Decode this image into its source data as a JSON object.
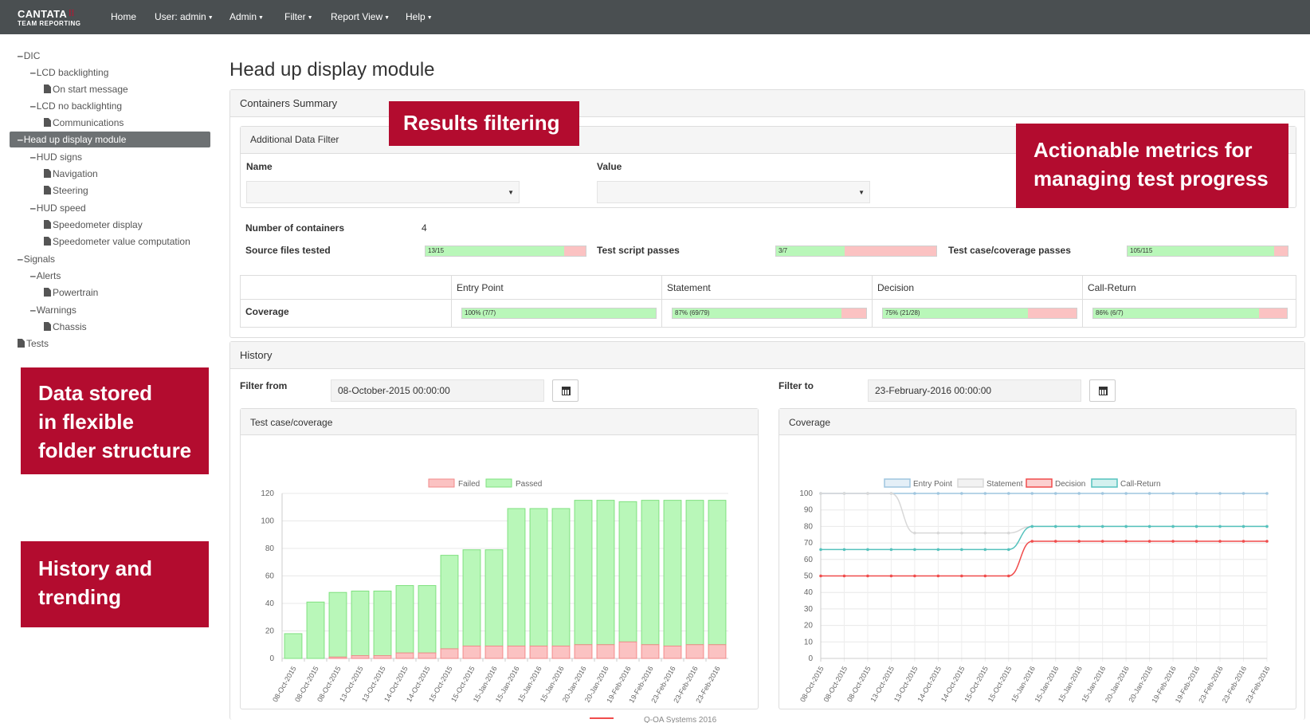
{
  "brand": {
    "name": "CANTATA",
    "sub": "TEAM REPORTING"
  },
  "nav": [
    {
      "label": "Home",
      "caret": false
    },
    {
      "label": "User: admin",
      "caret": true
    },
    {
      "label": "Admin",
      "caret": true
    },
    {
      "label": "Filter",
      "caret": true
    },
    {
      "label": "Report View",
      "caret": true
    },
    {
      "label": "Help",
      "caret": true
    }
  ],
  "tree": [
    {
      "label": "DIC",
      "type": "folder"
    },
    {
      "label": "LCD backlighting",
      "type": "folder"
    },
    {
      "label": "On start message",
      "type": "doc"
    },
    {
      "label": "LCD no backlighting",
      "type": "folder"
    },
    {
      "label": "Communications",
      "type": "doc"
    },
    {
      "label": "Head up display module",
      "type": "folder",
      "selected": true
    },
    {
      "label": "HUD signs",
      "type": "folder"
    },
    {
      "label": "Navigation",
      "type": "doc"
    },
    {
      "label": "Steering",
      "type": "doc"
    },
    {
      "label": "HUD speed",
      "type": "folder"
    },
    {
      "label": "Speedometer display",
      "type": "doc"
    },
    {
      "label": "Speedometer value computation",
      "type": "doc"
    },
    {
      "label": "Signals",
      "type": "folder"
    },
    {
      "label": "Alerts",
      "type": "folder"
    },
    {
      "label": "Powertrain",
      "type": "doc"
    },
    {
      "label": "Warnings",
      "type": "folder"
    },
    {
      "label": "Chassis",
      "type": "doc"
    },
    {
      "label": "Tests",
      "type": "doc"
    }
  ],
  "callouts": {
    "results": [
      "Results filtering"
    ],
    "metrics": [
      "Actionable metrics for",
      "managing  test progress"
    ],
    "folders": [
      "Data stored",
      "in flexible",
      "folder structure"
    ],
    "history": [
      "History and",
      "trending"
    ]
  },
  "page_title": "Head up display module",
  "summary": {
    "title": "Containers Summary",
    "filter": {
      "title": "Additional Data Filter",
      "name_label": "Name",
      "value_label": "Value",
      "name_value": "",
      "value_value": ""
    },
    "num_containers_label": "Number of containers",
    "num_containers": "4",
    "bars": [
      {
        "label": "Source files tested",
        "text": "13/15",
        "fraction": 0.867
      },
      {
        "label": "Test script passes",
        "text": "3/7",
        "fraction": 0.429
      },
      {
        "label": "Test case/coverage passes",
        "text": "105/115",
        "fraction": 0.913
      }
    ],
    "coverage": {
      "row_label": "Coverage",
      "columns": [
        {
          "header": "Entry Point",
          "text": "100% (7/7)",
          "fraction": 1.0
        },
        {
          "header": "Statement",
          "text": "87% (69/79)",
          "fraction": 0.873
        },
        {
          "header": "Decision",
          "text": "75% (21/28)",
          "fraction": 0.75
        },
        {
          "header": "Call-Return",
          "text": "86% (6/7)",
          "fraction": 0.857
        }
      ]
    }
  },
  "history": {
    "title": "History",
    "from_label": "Filter from",
    "from_value": "08-October-2015 00:00:00",
    "to_label": "Filter to",
    "to_value": "23-February-2016 00:00:00",
    "footer_text": "Q-OA Systems 2016"
  },
  "colors": {
    "failed": "#fbc2c2",
    "failed_stroke": "#f28a8a",
    "passed": "#b9f7b9",
    "passed_stroke": "#7fe07f",
    "entry_point": "#9fc6df",
    "statement": "#d8d8d8",
    "decision": "#f04c4c",
    "call_return": "#55c2bd",
    "accent": "#b30c2f"
  },
  "chart_data": [
    {
      "type": "bar",
      "title": "Test case/coverage",
      "categories": [
        "08-Oct-2015",
        "08-Oct-2015",
        "08-Oct-2015",
        "13-Oct-2015",
        "13-Oct-2015",
        "14-Oct-2015",
        "14-Oct-2015",
        "15-Oct-2015",
        "15-Oct-2015",
        "15-Jan-2016",
        "15-Jan-2016",
        "15-Jan-2016",
        "15-Jan-2016",
        "20-Jan-2016",
        "20-Jan-2016",
        "19-Feb-2016",
        "19-Feb-2016",
        "23-Feb-2016",
        "23-Feb-2016",
        "23-Feb-2016"
      ],
      "series": [
        {
          "name": "Failed",
          "values": [
            0,
            0,
            1,
            2,
            2,
            4,
            4,
            7,
            9,
            9,
            9,
            9,
            9,
            10,
            10,
            12,
            10,
            9,
            10,
            10
          ]
        },
        {
          "name": "Passed",
          "values": [
            18,
            41,
            47,
            47,
            47,
            49,
            49,
            68,
            70,
            70,
            100,
            100,
            100,
            105,
            105,
            102,
            105,
            106,
            105,
            105
          ]
        }
      ],
      "stacked": true,
      "ylim": [
        0,
        120
      ],
      "yticks": [
        0,
        20,
        40,
        60,
        80,
        100,
        120
      ],
      "legend": "top",
      "grid": true
    },
    {
      "type": "line",
      "title": "Coverage",
      "categories": [
        "08-Oct-2015",
        "08-Oct-2015",
        "08-Oct-2015",
        "13-Oct-2015",
        "13-Oct-2015",
        "14-Oct-2015",
        "14-Oct-2015",
        "15-Oct-2015",
        "15-Oct-2015",
        "15-Jan-2016",
        "15-Jan-2016",
        "15-Jan-2016",
        "15-Jan-2016",
        "20-Jan-2016",
        "20-Jan-2016",
        "19-Feb-2016",
        "19-Feb-2016",
        "23-Feb-2016",
        "23-Feb-2016",
        "23-Feb-2016"
      ],
      "series": [
        {
          "name": "Entry Point",
          "values": [
            100,
            100,
            100,
            100,
            100,
            100,
            100,
            100,
            100,
            100,
            100,
            100,
            100,
            100,
            100,
            100,
            100,
            100,
            100,
            100
          ]
        },
        {
          "name": "Statement",
          "values": [
            100,
            100,
            100,
            100,
            76,
            76,
            76,
            76,
            76,
            80,
            80,
            80,
            80,
            80,
            80,
            80,
            80,
            80,
            80,
            80
          ]
        },
        {
          "name": "Decision",
          "values": [
            50,
            50,
            50,
            50,
            50,
            50,
            50,
            50,
            50,
            71,
            71,
            71,
            71,
            71,
            71,
            71,
            71,
            71,
            71,
            71
          ]
        },
        {
          "name": "Call-Return",
          "values": [
            66,
            66,
            66,
            66,
            66,
            66,
            66,
            66,
            66,
            80,
            80,
            80,
            80,
            80,
            80,
            80,
            80,
            80,
            80,
            80
          ]
        }
      ],
      "ylim": [
        0,
        100
      ],
      "yticks": [
        0,
        10,
        20,
        30,
        40,
        50,
        60,
        70,
        80,
        90,
        100
      ],
      "legend": "top",
      "grid": true
    }
  ]
}
